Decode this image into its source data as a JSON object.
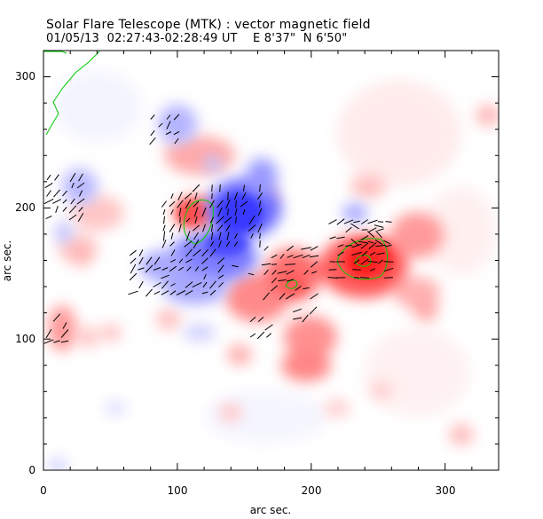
{
  "header": {
    "title": "Solar Flare Telescope (MTK) : vector magnetic field",
    "observation": "01/05/13  02:27:43-02:28:49 UT    E 8'37\"  N 6'50\""
  },
  "chart_data": {
    "type": "heatmap",
    "xlabel": "arc sec.",
    "ylabel": "arc sec.",
    "xlim": [
      0,
      340
    ],
    "ylim": [
      0,
      320
    ],
    "x_ticks": [
      0,
      100,
      200,
      300
    ],
    "y_ticks": [
      0,
      100,
      200,
      300
    ],
    "colors": {
      "positive_polarity": "#ff4a4a",
      "negative_polarity": "#3c3cff",
      "contour": "#00cc00",
      "vectors": "#000000"
    }
  }
}
